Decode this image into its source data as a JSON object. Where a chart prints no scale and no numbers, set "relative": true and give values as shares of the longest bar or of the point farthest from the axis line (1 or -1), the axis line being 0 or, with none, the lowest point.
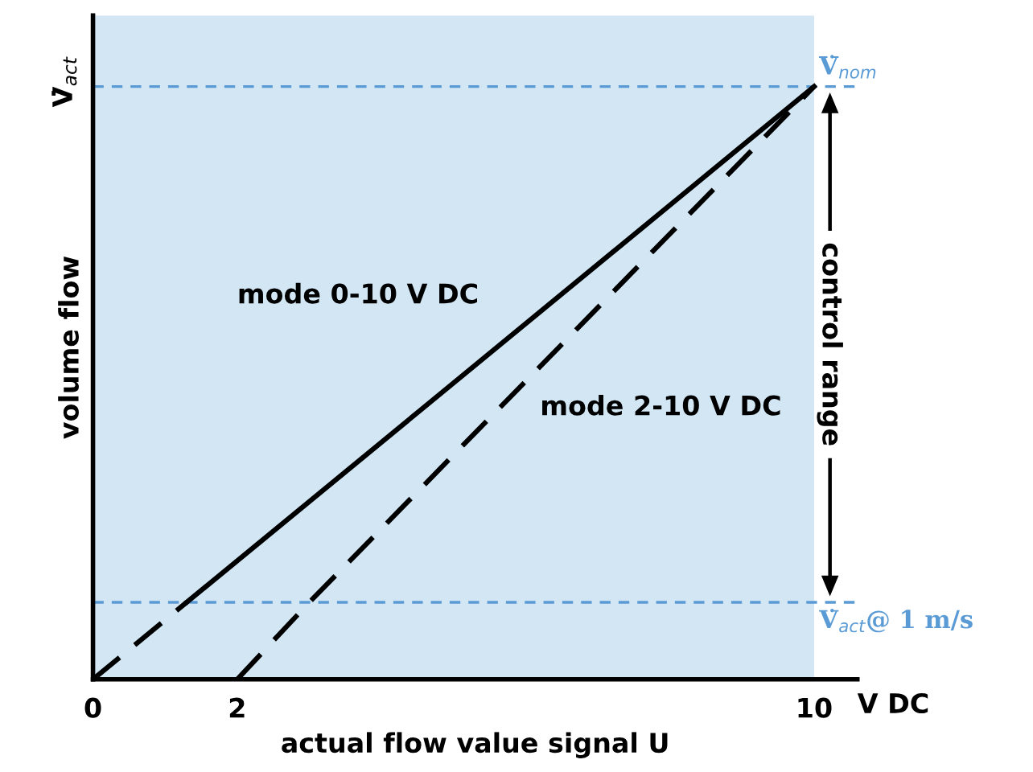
{
  "chart_data": {
    "type": "line",
    "relative": true,
    "xlabel": "actual flow value signal U",
    "ylabel": "volume flow",
    "annotations": [
      "V̇$_{act}$",
      "V DC",
      "control range"
    ],
    "xlim": [
      0,
      10.6
    ],
    "xticks": [
      0,
      2,
      10
    ],
    "series": [
      {
        "name": "mode 0-10 V DC",
        "color": "#000000",
        "line_style": "solid",
        "x": [
          1.3,
          10
        ],
        "values": [
          0.13,
          1
        ]
      },
      {
        "name": "mode 2-10 V DC",
        "color": "#000000",
        "line_style": "dashed",
        "x": [
          2,
          3.0,
          10
        ],
        "values": [
          0,
          0.13,
          1
        ]
      },
      {
        "color": "#000000",
        "line_style": "dashed",
        "x": [
          0,
          1.3
        ],
        "values": [
          0,
          0.13
        ]
      }
    ],
    "ref_lines": [
      {
        "axis": "y",
        "value": 1,
        "label": "V̇$_{nom}$",
        "color": "#5b9bd5",
        "line_style": "dashed"
      },
      {
        "axis": "y",
        "value": 0.13,
        "label": "V̇$_{act}$@ 1 m/s",
        "color": "#5b9bd5",
        "line_style": "dashed"
      }
    ],
    "bands": [
      {
        "axis": "x",
        "from": 0,
        "to": 10,
        "color": "#d2e6f4"
      }
    ],
    "grid": false
  }
}
